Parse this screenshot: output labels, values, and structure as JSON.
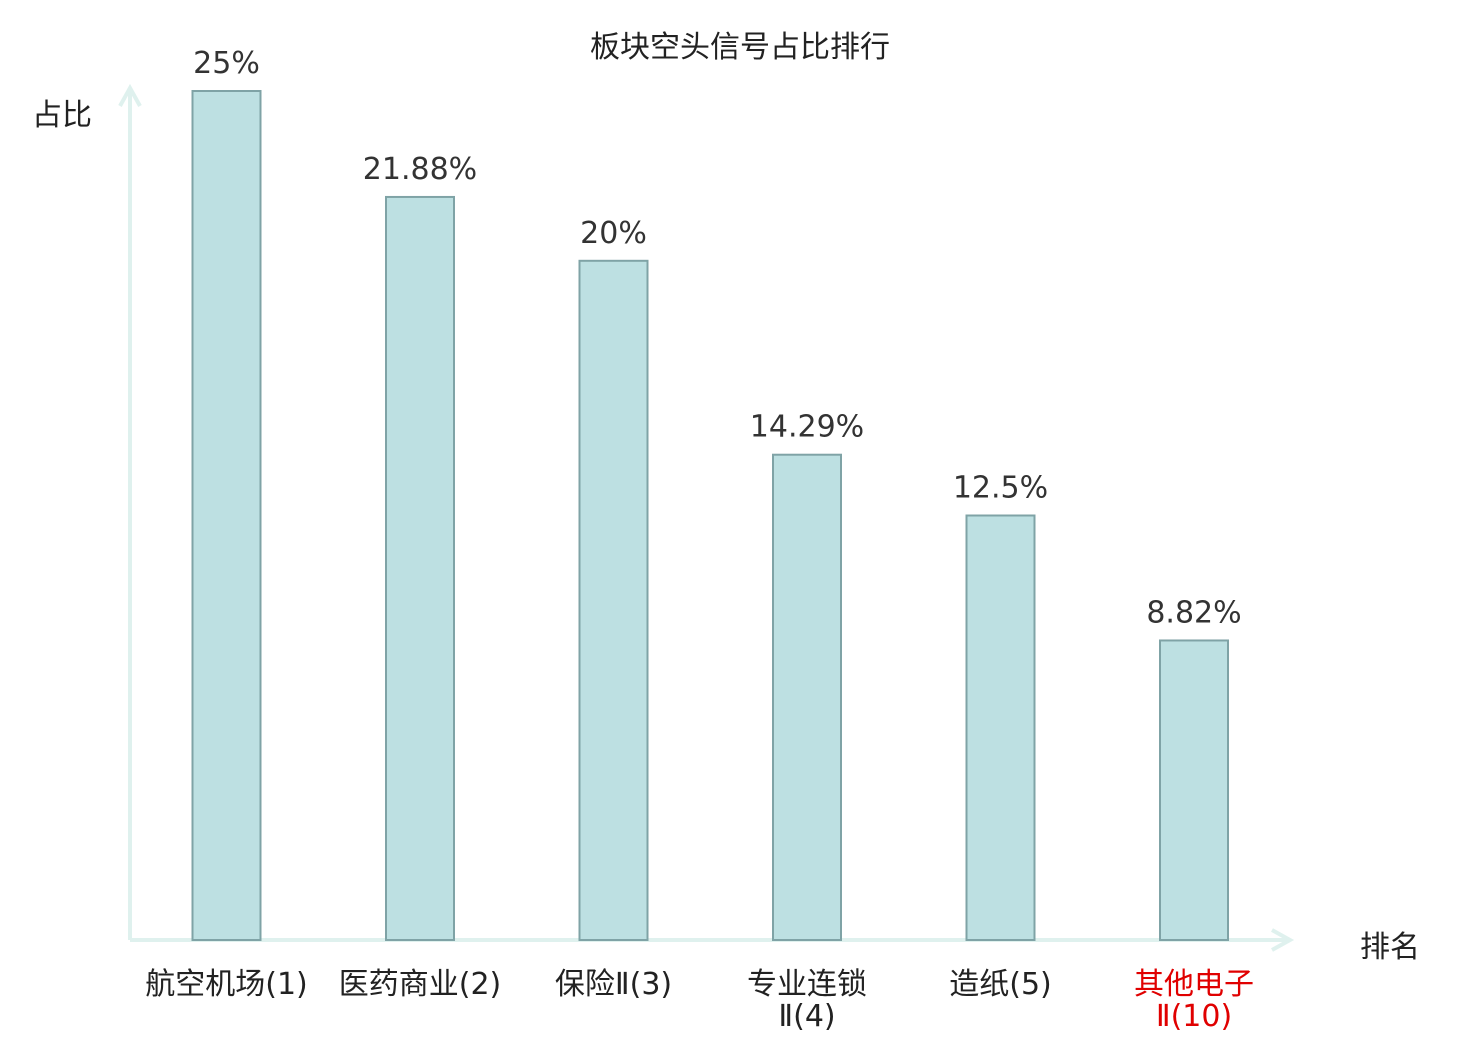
{
  "chart_data": {
    "type": "bar",
    "title": "板块空头信号占比排行",
    "ylabel": "占比",
    "xlabel": "排名",
    "ylim": [
      0,
      25
    ],
    "grid": false,
    "bar_color": "#bde0e2",
    "bar_border_color": "#7fa3a6",
    "axis_color": "#dff1ee",
    "highlight_color": "#e00000",
    "categories": [
      {
        "lines": [
          "航空机场(1)"
        ],
        "highlight": false
      },
      {
        "lines": [
          "医药商业(2)"
        ],
        "highlight": false
      },
      {
        "lines": [
          "保险Ⅱ(3)"
        ],
        "highlight": false
      },
      {
        "lines": [
          "专业连锁",
          "Ⅱ(4)"
        ],
        "highlight": false
      },
      {
        "lines": [
          "造纸(5)"
        ],
        "highlight": false
      },
      {
        "lines": [
          "其他电子",
          "Ⅱ(10)"
        ],
        "highlight": true
      }
    ],
    "values": [
      25,
      21.88,
      20,
      14.29,
      12.5,
      8.82
    ],
    "value_labels": [
      "25%",
      "21.88%",
      "20%",
      "14.29%",
      "12.5%",
      "8.82%"
    ]
  }
}
